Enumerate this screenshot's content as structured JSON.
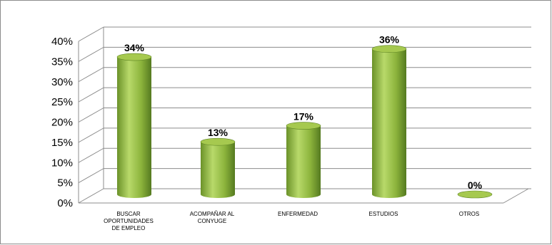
{
  "chart_data": {
    "type": "bar",
    "categories": [
      "BUSCAR OPORTUNIDADES DE EMPLEO",
      "ACOMPAÑAR AL CONYUGE",
      "ENFERMEDAD",
      "ESTUDIOS",
      "OTROS"
    ],
    "category_lines": [
      [
        "BUSCAR",
        "OPORTUNIDADES",
        "DE EMPLEO"
      ],
      [
        "ACOMPAÑAR AL",
        "CONYUGE"
      ],
      [
        "ENFERMEDAD"
      ],
      [
        "ESTUDIOS"
      ],
      [
        "OTROS"
      ]
    ],
    "values": [
      34,
      13,
      17,
      36,
      0
    ],
    "data_labels": [
      "34%",
      "13%",
      "17%",
      "36%",
      "0%"
    ],
    "yticks": [
      "0%",
      "5%",
      "10%",
      "15%",
      "20%",
      "25%",
      "30%",
      "35%",
      "40%"
    ],
    "ylim": [
      0,
      40
    ],
    "grid": true,
    "style": "3d-cylinder",
    "colors": {
      "bar_light": "#b8d96a",
      "bar_mid": "#8cb43c",
      "bar_dark": "#5e8424",
      "top": "#a6c94f",
      "grid": "#8c8c8c"
    }
  }
}
